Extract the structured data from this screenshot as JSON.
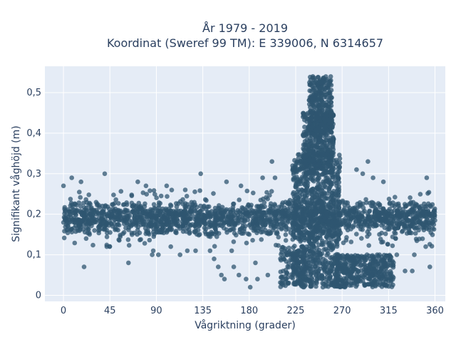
{
  "chart_data": {
    "type": "scatter",
    "title_line1": "År 1979 - 2019",
    "title_line2": "Koordinat (Sweref 99 TM): E 339006, N 6314657",
    "xlabel": "Vågriktning (grader)",
    "ylabel": "Signifikant våghöjd (m)",
    "xlim": [
      -18,
      370
    ],
    "ylim": [
      -0.015,
      0.565
    ],
    "xticks": [
      {
        "value": 0,
        "label": "0"
      },
      {
        "value": 45,
        "label": "45"
      },
      {
        "value": 90,
        "label": "90"
      },
      {
        "value": 135,
        "label": "135"
      },
      {
        "value": 180,
        "label": "180"
      },
      {
        "value": 225,
        "label": "225"
      },
      {
        "value": 270,
        "label": "270"
      },
      {
        "value": 315,
        "label": "315"
      },
      {
        "value": 360,
        "label": "360"
      }
    ],
    "yticks": [
      {
        "value": 0,
        "label": "0"
      },
      {
        "value": 0.1,
        "label": "0,1"
      },
      {
        "value": 0.2,
        "label": "0,2"
      },
      {
        "value": 0.3,
        "label": "0,3"
      },
      {
        "value": 0.4,
        "label": "0,4"
      },
      {
        "value": 0.5,
        "label": "0,5"
      }
    ],
    "grid": true,
    "marker_color": "#2f5570",
    "plot_bg": "#e5ecf6",
    "dense_regions": [
      {
        "x": [
          0,
          360
        ],
        "y": [
          0.15,
          0.23
        ],
        "count": 900
      },
      {
        "x": [
          0,
          360
        ],
        "y": [
          0.17,
          0.21
        ],
        "count": 800
      },
      {
        "x": [
          222,
          268
        ],
        "y": [
          0.02,
          0.35
        ],
        "count": 900
      },
      {
        "x": [
          232,
          262
        ],
        "y": [
          0.3,
          0.45
        ],
        "count": 400
      },
      {
        "x": [
          238,
          260
        ],
        "y": [
          0.4,
          0.54
        ],
        "count": 300
      },
      {
        "x": [
          265,
          320
        ],
        "y": [
          0.02,
          0.1
        ],
        "count": 400
      },
      {
        "x": [
          210,
          235
        ],
        "y": [
          0.02,
          0.12
        ],
        "count": 150
      },
      {
        "x": [
          0,
          360
        ],
        "y": [
          0.12,
          0.26
        ],
        "count": 300
      }
    ],
    "points": [
      {
        "x": 0,
        "y": 0.27
      },
      {
        "x": 8,
        "y": 0.29
      },
      {
        "x": 17,
        "y": 0.28
      },
      {
        "x": 20,
        "y": 0.07
      },
      {
        "x": 22,
        "y": 0.14
      },
      {
        "x": 40,
        "y": 0.3
      },
      {
        "x": 42,
        "y": 0.12
      },
      {
        "x": 63,
        "y": 0.08
      },
      {
        "x": 72,
        "y": 0.28
      },
      {
        "x": 80,
        "y": 0.27
      },
      {
        "x": 86,
        "y": 0.1
      },
      {
        "x": 87,
        "y": 0.11
      },
      {
        "x": 92,
        "y": 0.1
      },
      {
        "x": 100,
        "y": 0.27
      },
      {
        "x": 104,
        "y": 0.12
      },
      {
        "x": 113,
        "y": 0.1
      },
      {
        "x": 120,
        "y": 0.11
      },
      {
        "x": 118,
        "y": 0.26
      },
      {
        "x": 128,
        "y": 0.11
      },
      {
        "x": 133,
        "y": 0.3
      },
      {
        "x": 142,
        "y": 0.11
      },
      {
        "x": 146,
        "y": 0.09
      },
      {
        "x": 150,
        "y": 0.07
      },
      {
        "x": 153,
        "y": 0.05
      },
      {
        "x": 156,
        "y": 0.04
      },
      {
        "x": 158,
        "y": 0.28
      },
      {
        "x": 163,
        "y": 0.11
      },
      {
        "x": 165,
        "y": 0.07
      },
      {
        "x": 170,
        "y": 0.05
      },
      {
        "x": 172,
        "y": 0.27
      },
      {
        "x": 177,
        "y": 0.04
      },
      {
        "x": 181,
        "y": 0.02
      },
      {
        "x": 186,
        "y": 0.08
      },
      {
        "x": 188,
        "y": 0.04
      },
      {
        "x": 193,
        "y": 0.29
      },
      {
        "x": 198,
        "y": 0.05
      },
      {
        "x": 202,
        "y": 0.33
      },
      {
        "x": 205,
        "y": 0.29
      },
      {
        "x": 284,
        "y": 0.31
      },
      {
        "x": 290,
        "y": 0.3
      },
      {
        "x": 295,
        "y": 0.33
      },
      {
        "x": 300,
        "y": 0.29
      },
      {
        "x": 310,
        "y": 0.28
      },
      {
        "x": 323,
        "y": 0.1
      },
      {
        "x": 331,
        "y": 0.06
      },
      {
        "x": 338,
        "y": 0.06
      },
      {
        "x": 340,
        "y": 0.1
      },
      {
        "x": 352,
        "y": 0.29
      },
      {
        "x": 355,
        "y": 0.07
      },
      {
        "x": 351,
        "y": 0.12
      }
    ]
  }
}
